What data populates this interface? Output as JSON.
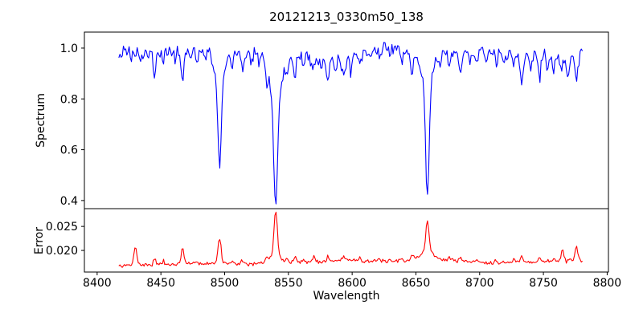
{
  "chart_data": {
    "type": "line",
    "title": "20121213_0330m50_138",
    "xlabel": "Wavelength",
    "grid": false,
    "legend": "none",
    "xlim": [
      8390,
      8801
    ],
    "x_ticks": [
      8400,
      8450,
      8500,
      8550,
      8600,
      8650,
      8700,
      8750,
      8800
    ],
    "x_tick_labels": [
      "8400",
      "8450",
      "8500",
      "8550",
      "8600",
      "8650",
      "8700",
      "8750",
      "8800"
    ],
    "x_data_range": [
      8417,
      8781
    ],
    "sample_step": 0.9,
    "panels": [
      {
        "name": "spectrum",
        "ylabel": "Spectrum",
        "color": "#0000ff",
        "ylim": [
          0.368,
          1.063
        ],
        "y_ticks": [
          0.4,
          0.6,
          0.8,
          1.0
        ],
        "y_tick_labels": [
          "0.4",
          "0.6",
          "0.8",
          "1.0"
        ],
        "noise_amp": 0.03,
        "noise_seed": 42,
        "continuum_points": [
          [
            8417,
            0.982
          ],
          [
            8438,
            0.982
          ],
          [
            8458,
            0.985
          ],
          [
            8478,
            0.988
          ],
          [
            8498,
            0.976
          ],
          [
            8512,
            0.978
          ],
          [
            8530,
            0.982
          ],
          [
            8550,
            0.972
          ],
          [
            8565,
            0.966
          ],
          [
            8588,
            0.956
          ],
          [
            8605,
            0.975
          ],
          [
            8625,
            1.002
          ],
          [
            8636,
            0.992
          ],
          [
            8650,
            0.975
          ],
          [
            8666,
            0.98
          ],
          [
            8685,
            0.985
          ],
          [
            8702,
            0.985
          ],
          [
            8718,
            0.977
          ],
          [
            8734,
            0.972
          ],
          [
            8750,
            0.97
          ],
          [
            8762,
            0.965
          ],
          [
            8772,
            0.968
          ],
          [
            8777,
            0.982
          ],
          [
            8781,
            1.005
          ]
        ],
        "absorption_lines": [
          [
            8427,
            0.03,
            0.7
          ],
          [
            8434,
            0.048,
            0.8
          ],
          [
            8445,
            0.105,
            0.9
          ],
          [
            8452,
            0.045,
            0.7
          ],
          [
            8461,
            0.035,
            0.7
          ],
          [
            8467,
            0.115,
            1.0
          ],
          [
            8473,
            0.04,
            0.7
          ],
          [
            8478,
            0.052,
            0.8
          ],
          [
            8485,
            0.03,
            0.7
          ],
          [
            8496,
            0.29,
            1.2
          ],
          [
            8496,
            0.14,
            3.5
          ],
          [
            8506,
            0.04,
            0.8
          ],
          [
            8514,
            0.075,
            1.0
          ],
          [
            8521,
            0.042,
            0.8
          ],
          [
            8527,
            0.05,
            0.8
          ],
          [
            8533,
            0.055,
            0.8
          ],
          [
            8540,
            0.42,
            1.5
          ],
          [
            8540,
            0.17,
            5.0
          ],
          [
            8549,
            0.045,
            0.8
          ],
          [
            8555,
            0.085,
            1.0
          ],
          [
            8562,
            0.05,
            0.8
          ],
          [
            8569,
            0.062,
            0.9
          ],
          [
            8576,
            0.05,
            0.8
          ],
          [
            8581,
            0.095,
            1.1
          ],
          [
            8587,
            0.055,
            0.9
          ],
          [
            8593,
            0.07,
            1.4
          ],
          [
            8599,
            0.06,
            0.9
          ],
          [
            8606,
            0.04,
            0.8
          ],
          [
            8614,
            0.03,
            0.7
          ],
          [
            8622,
            0.028,
            0.7
          ],
          [
            8630,
            0.03,
            0.7
          ],
          [
            8639,
            0.042,
            0.8
          ],
          [
            8647,
            0.09,
            0.9
          ],
          [
            8659,
            0.41,
            1.3
          ],
          [
            8659,
            0.15,
            4.0
          ],
          [
            8669,
            0.045,
            0.8
          ],
          [
            8676,
            0.07,
            0.9
          ],
          [
            8685,
            0.09,
            1.0
          ],
          [
            8692,
            0.042,
            0.8
          ],
          [
            8698,
            0.05,
            0.8
          ],
          [
            8705,
            0.035,
            0.7
          ],
          [
            8713,
            0.05,
            0.8
          ],
          [
            8719,
            0.04,
            0.8
          ],
          [
            8727,
            0.05,
            0.8
          ],
          [
            8733,
            0.11,
            1.1
          ],
          [
            8740,
            0.05,
            0.8
          ],
          [
            8747,
            0.09,
            1.0
          ],
          [
            8753,
            0.05,
            0.8
          ],
          [
            8758,
            0.06,
            0.9
          ],
          [
            8764,
            0.052,
            0.8
          ],
          [
            8769,
            0.085,
            1.0
          ],
          [
            8776,
            0.105,
            1.2
          ]
        ],
        "key_points": [
          [
            8417,
            0.98
          ],
          [
            8430,
            0.96
          ],
          [
            8445,
            0.88
          ],
          [
            8467,
            0.87
          ],
          [
            8478,
            0.93
          ],
          [
            8496,
            0.57
          ],
          [
            8514,
            0.9
          ],
          [
            8540,
            0.4
          ],
          [
            8555,
            0.9
          ],
          [
            8581,
            0.87
          ],
          [
            8593,
            0.89
          ],
          [
            8625,
            1.02
          ],
          [
            8647,
            0.92
          ],
          [
            8659,
            0.43
          ],
          [
            8676,
            0.91
          ],
          [
            8685,
            0.89
          ],
          [
            8733,
            0.86
          ],
          [
            8747,
            0.88
          ],
          [
            8769,
            0.89
          ],
          [
            8776,
            0.87
          ],
          [
            8781,
            1.02
          ]
        ]
      },
      {
        "name": "error",
        "ylabel": "Error",
        "color": "#ff0000",
        "ylim": [
          0.0155,
          0.0287
        ],
        "y_ticks": [
          0.02,
          0.025
        ],
        "y_tick_labels": [
          "0.020",
          "0.025"
        ],
        "noise_amp": 0.0005,
        "noise_seed": 7,
        "baseline_points": [
          [
            8417,
            0.0167
          ],
          [
            8430,
            0.017
          ],
          [
            8445,
            0.017
          ],
          [
            8460,
            0.0171
          ],
          [
            8478,
            0.0172
          ],
          [
            8495,
            0.0174
          ],
          [
            8508,
            0.0172
          ],
          [
            8522,
            0.0171
          ],
          [
            8538,
            0.0176
          ],
          [
            8552,
            0.0174
          ],
          [
            8565,
            0.0176
          ],
          [
            8582,
            0.0177
          ],
          [
            8598,
            0.0181
          ],
          [
            8612,
            0.0178
          ],
          [
            8628,
            0.0177
          ],
          [
            8642,
            0.0179
          ],
          [
            8655,
            0.0186
          ],
          [
            8662,
            0.0186
          ],
          [
            8672,
            0.018
          ],
          [
            8690,
            0.0177
          ],
          [
            8705,
            0.0175
          ],
          [
            8722,
            0.0175
          ],
          [
            8738,
            0.0176
          ],
          [
            8752,
            0.0177
          ],
          [
            8764,
            0.0178
          ],
          [
            8775,
            0.0178
          ],
          [
            8781,
            0.0178
          ]
        ],
        "peaks": [
          [
            8430,
            0.004,
            1.1
          ],
          [
            8445,
            0.0013,
            0.9
          ],
          [
            8452,
            0.0008,
            0.8
          ],
          [
            8467,
            0.0032,
            1.1
          ],
          [
            8478,
            0.0009,
            0.8
          ],
          [
            8496,
            0.0052,
            1.2
          ],
          [
            8506,
            0.0008,
            0.8
          ],
          [
            8514,
            0.0009,
            0.8
          ],
          [
            8533,
            0.0009,
            0.8
          ],
          [
            8540,
            0.0094,
            1.3
          ],
          [
            8540,
            0.0013,
            4.5
          ],
          [
            8549,
            0.0008,
            0.8
          ],
          [
            8555,
            0.0013,
            0.9
          ],
          [
            8562,
            0.0008,
            0.8
          ],
          [
            8570,
            0.0013,
            0.9
          ],
          [
            8581,
            0.001,
            0.9
          ],
          [
            8593,
            0.0008,
            1.2
          ],
          [
            8606,
            0.0006,
            0.8
          ],
          [
            8622,
            0.0005,
            0.8
          ],
          [
            8639,
            0.0006,
            0.8
          ],
          [
            8647,
            0.0009,
            0.8
          ],
          [
            8659,
            0.006,
            1.3
          ],
          [
            8659,
            0.0013,
            4.0
          ],
          [
            8676,
            0.0008,
            0.8
          ],
          [
            8685,
            0.0011,
            0.9
          ],
          [
            8698,
            0.0006,
            0.8
          ],
          [
            8713,
            0.0006,
            0.8
          ],
          [
            8727,
            0.0007,
            0.8
          ],
          [
            8733,
            0.0013,
            0.9
          ],
          [
            8747,
            0.001,
            0.8
          ],
          [
            8758,
            0.0008,
            0.8
          ],
          [
            8765,
            0.0022,
            1.0
          ],
          [
            8776,
            0.003,
            1.0
          ]
        ],
        "key_points": [
          [
            8417,
            0.0167
          ],
          [
            8430,
            0.021
          ],
          [
            8467,
            0.0204
          ],
          [
            8496,
            0.0226
          ],
          [
            8540,
            0.0283
          ],
          [
            8570,
            0.019
          ],
          [
            8598,
            0.0183
          ],
          [
            8659,
            0.0248
          ],
          [
            8685,
            0.019
          ],
          [
            8733,
            0.019
          ],
          [
            8765,
            0.02
          ],
          [
            8776,
            0.0208
          ],
          [
            8781,
            0.018
          ]
        ]
      }
    ]
  }
}
